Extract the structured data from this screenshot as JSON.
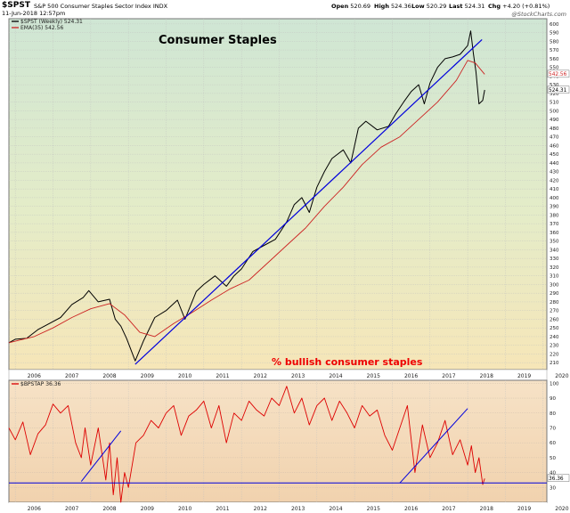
{
  "header": {
    "symbol": "$SPST",
    "description": "S&P 500 Consumer Staples Sector Index  INDX",
    "date": "11-Jun-2018 12:57pm",
    "open_label": "Open",
    "open": "520.69",
    "high_label": "High",
    "high": "524.36",
    "low_label": "Low",
    "low": "520.29",
    "last_label": "Last",
    "last": "524.31",
    "chg_label": "Chg",
    "chg": "+4.20 (+0.81%)",
    "watermark": "@StockCharts.com"
  },
  "colors": {
    "price": "#000000",
    "ema": "#cc2222",
    "trendline": "#0000dd",
    "bullish": "#dd0000",
    "annotation_red": "#ee0000"
  },
  "chart_data": [
    {
      "type": "line",
      "title": "Consumer Staples",
      "legend": [
        {
          "label": "$SPST (Weekly) 524.31",
          "color": "#000000"
        },
        {
          "label": "EMA(35) 542.56",
          "color": "#cc2222"
        }
      ],
      "legend_placement": "top-left",
      "x_ticks": [
        "2006",
        "2007",
        "2008",
        "2009",
        "2010",
        "2011",
        "2012",
        "2013",
        "2014",
        "2015",
        "2016",
        "2017",
        "2018",
        "2019",
        "2020"
      ],
      "xlim": [
        2005.83,
        2020.1
      ],
      "y_ticks": [
        210,
        220,
        230,
        240,
        250,
        260,
        270,
        280,
        290,
        300,
        310,
        320,
        330,
        340,
        350,
        360,
        370,
        380,
        390,
        400,
        410,
        420,
        430,
        440,
        450,
        460,
        470,
        480,
        490,
        500,
        510,
        520,
        530,
        540,
        550,
        560,
        570,
        580,
        590,
        600
      ],
      "ylim": [
        202,
        606
      ],
      "grid": true,
      "series": [
        {
          "role": "price",
          "x": [
            2005.83,
            2006.0,
            2006.3,
            2006.6,
            2006.9,
            2007.2,
            2007.5,
            2007.8,
            2007.95,
            2008.2,
            2008.5,
            2008.65,
            2008.8,
            2008.95,
            2009.18,
            2009.4,
            2009.7,
            2010.0,
            2010.3,
            2010.5,
            2010.8,
            2011.0,
            2011.3,
            2011.6,
            2011.8,
            2012.0,
            2012.3,
            2012.6,
            2012.9,
            2013.2,
            2013.4,
            2013.6,
            2013.8,
            2014.0,
            2014.2,
            2014.4,
            2014.7,
            2014.9,
            2015.1,
            2015.3,
            2015.6,
            2015.9,
            2016.1,
            2016.3,
            2016.5,
            2016.7,
            2016.85,
            2017.0,
            2017.2,
            2017.4,
            2017.6,
            2017.8,
            2018.0,
            2018.08,
            2018.15,
            2018.22,
            2018.3,
            2018.4,
            2018.45
          ],
          "y": [
            233,
            237,
            238,
            248,
            255,
            262,
            277,
            285,
            293,
            280,
            283,
            260,
            252,
            238,
            212,
            235,
            262,
            270,
            282,
            260,
            292,
            300,
            310,
            298,
            310,
            318,
            338,
            345,
            352,
            372,
            392,
            400,
            383,
            412,
            430,
            445,
            455,
            440,
            480,
            488,
            478,
            482,
            497,
            510,
            522,
            530,
            508,
            532,
            550,
            560,
            562,
            565,
            575,
            592,
            566,
            545,
            508,
            512,
            524
          ]
        },
        {
          "role": "ema",
          "x": [
            2005.83,
            2006.5,
            2007.0,
            2007.5,
            2008.0,
            2008.5,
            2008.9,
            2009.3,
            2009.7,
            2010.2,
            2010.7,
            2011.2,
            2011.7,
            2012.2,
            2012.7,
            2013.2,
            2013.7,
            2014.2,
            2014.7,
            2015.2,
            2015.7,
            2016.2,
            2016.7,
            2017.2,
            2017.7,
            2018.0,
            2018.2,
            2018.45
          ],
          "y": [
            233,
            240,
            250,
            262,
            272,
            278,
            265,
            245,
            240,
            255,
            268,
            282,
            295,
            305,
            325,
            345,
            365,
            390,
            412,
            438,
            458,
            470,
            490,
            510,
            535,
            558,
            555,
            542
          ]
        },
        {
          "role": "trendline",
          "x": [
            2009.18,
            2018.38
          ],
          "y": [
            208,
            582
          ]
        }
      ],
      "annotations": [
        "% bullish consumer staples"
      ],
      "last_labels": [
        "542.56",
        "524.31"
      ]
    },
    {
      "type": "line",
      "legend": [
        {
          "label": "$BPSTAP 36.36",
          "color": "#dd0000"
        }
      ],
      "x_ticks": [
        "2006",
        "2007",
        "2008",
        "2009",
        "2010",
        "2011",
        "2012",
        "2013",
        "2014",
        "2015",
        "2016",
        "2017",
        "2018",
        "2019",
        "2020"
      ],
      "xlim": [
        2005.83,
        2020.1
      ],
      "y_ticks": [
        30,
        40,
        50,
        60,
        70,
        80,
        90,
        100
      ],
      "ylim": [
        20,
        102
      ],
      "grid": true,
      "series": [
        {
          "role": "bullish",
          "x": [
            2005.83,
            2006.0,
            2006.2,
            2006.4,
            2006.6,
            2006.8,
            2007.0,
            2007.2,
            2007.4,
            2007.6,
            2007.75,
            2007.85,
            2008.0,
            2008.2,
            2008.4,
            2008.5,
            2008.6,
            2008.7,
            2008.8,
            2008.9,
            2009.0,
            2009.2,
            2009.4,
            2009.6,
            2009.8,
            2010.0,
            2010.2,
            2010.4,
            2010.6,
            2010.8,
            2011.0,
            2011.2,
            2011.4,
            2011.6,
            2011.8,
            2012.0,
            2012.2,
            2012.4,
            2012.6,
            2012.8,
            2013.0,
            2013.2,
            2013.4,
            2013.6,
            2013.8,
            2014.0,
            2014.2,
            2014.4,
            2014.6,
            2014.8,
            2015.0,
            2015.2,
            2015.4,
            2015.6,
            2015.8,
            2016.0,
            2016.2,
            2016.4,
            2016.6,
            2016.8,
            2017.0,
            2017.2,
            2017.4,
            2017.6,
            2017.8,
            2018.0,
            2018.1,
            2018.2,
            2018.3,
            2018.4,
            2018.45
          ],
          "y": [
            70,
            62,
            74,
            52,
            66,
            72,
            86,
            80,
            85,
            60,
            50,
            70,
            45,
            70,
            35,
            60,
            25,
            50,
            20,
            40,
            30,
            60,
            65,
            75,
            70,
            80,
            85,
            65,
            78,
            82,
            88,
            70,
            85,
            60,
            80,
            75,
            88,
            82,
            78,
            90,
            85,
            98,
            80,
            90,
            72,
            85,
            90,
            75,
            88,
            80,
            70,
            85,
            78,
            82,
            65,
            55,
            70,
            85,
            40,
            72,
            50,
            60,
            75,
            52,
            62,
            45,
            58,
            40,
            50,
            32,
            36
          ]
        },
        {
          "role": "trendline_low",
          "x": [
            2005.83,
            2020.1
          ],
          "y": [
            33,
            33
          ]
        },
        {
          "role": "trendline_up_2008",
          "x": [
            2007.75,
            2008.8
          ],
          "y": [
            34,
            68
          ]
        },
        {
          "role": "trendline_up_2017",
          "x": [
            2016.2,
            2018.0
          ],
          "y": [
            33,
            83
          ]
        }
      ],
      "last_labels": [
        "36.36"
      ]
    }
  ]
}
